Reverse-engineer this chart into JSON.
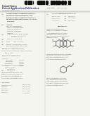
{
  "bg_color": "#ffffff",
  "page_bg": "#f5f5f0",
  "text_color": "#444444",
  "dark_text": "#222222",
  "barcode_color": "#111111",
  "line_color": "#999999",
  "blue_header": "#333377",
  "fig_width": 1.28,
  "fig_height": 1.65,
  "dpi": 100
}
